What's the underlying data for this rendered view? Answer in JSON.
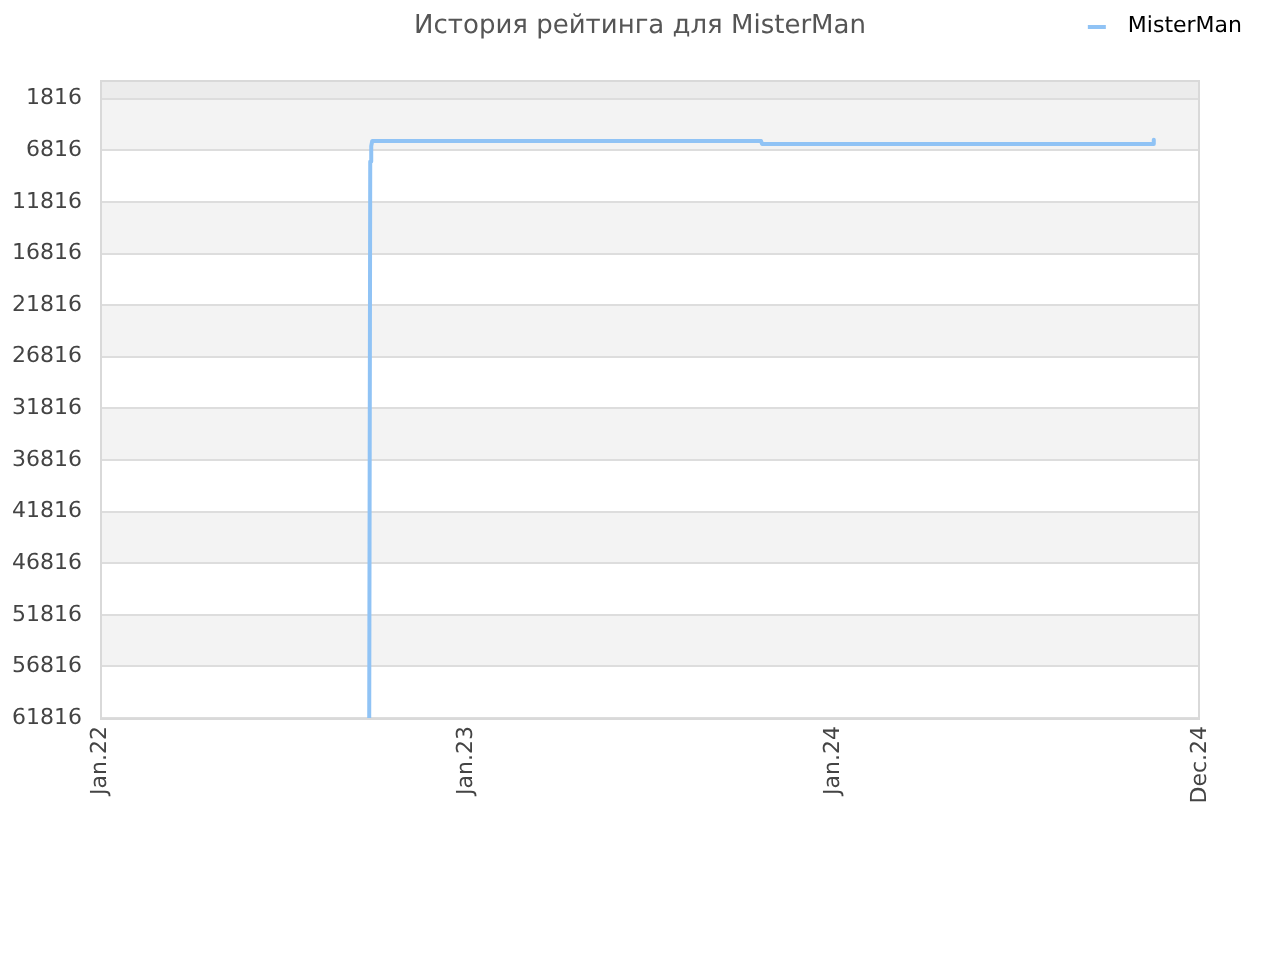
{
  "chart_data": {
    "type": "line",
    "title": "История рейтинга для MisterMan",
    "x": [
      "2022-09-26",
      "2022-09-27",
      "2022-09-28",
      "2022-09-29",
      "2023-10-21",
      "2023-10-22",
      "2024-11-14",
      "2024-11-15"
    ],
    "series": [
      {
        "name": "MisterMan",
        "color": "#90c3f5",
        "values": [
          61816,
          7900,
          6400,
          5900,
          5900,
          6200,
          6200,
          5800
        ]
      }
    ],
    "xlim": [
      "2022-01-01",
      "2024-12-31"
    ],
    "xticks": [
      {
        "value": "2022-01-01",
        "label": "Jan.22"
      },
      {
        "value": "2023-01-01",
        "label": "Jan.23"
      },
      {
        "value": "2024-01-01",
        "label": "Jan.24"
      },
      {
        "value": "2024-12-31",
        "label": "Dec.24"
      }
    ],
    "ylim": [
      61816,
      0
    ],
    "yticks": [
      1816,
      6816,
      11816,
      16816,
      21816,
      26816,
      31816,
      36816,
      41816,
      46816,
      51816,
      56816,
      61816
    ],
    "bands": [
      {
        "axis": "y",
        "from": 0,
        "to": 1816,
        "color": "#ececec"
      },
      {
        "axis": "y",
        "from": 1816,
        "to": 6816,
        "color": "#f3f3f3"
      },
      {
        "axis": "y",
        "from": 11816,
        "to": 16816,
        "color": "#f3f3f3"
      },
      {
        "axis": "y",
        "from": 21816,
        "to": 26816,
        "color": "#f3f3f3"
      },
      {
        "axis": "y",
        "from": 31816,
        "to": 36816,
        "color": "#f3f3f3"
      },
      {
        "axis": "y",
        "from": 41816,
        "to": 46816,
        "color": "#f3f3f3"
      },
      {
        "axis": "y",
        "from": 51816,
        "to": 56816,
        "color": "#f3f3f3"
      }
    ],
    "grid": "y",
    "legend": "top right",
    "marker": "none"
  }
}
